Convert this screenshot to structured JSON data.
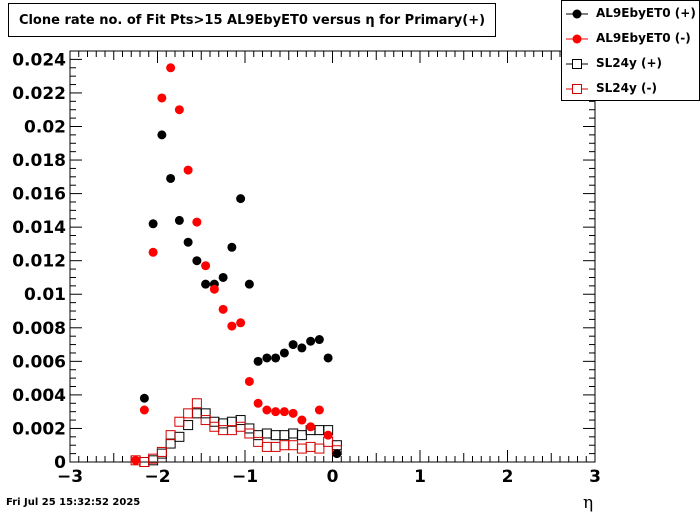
{
  "chart_data": {
    "type": "scatter",
    "title": "Clone rate no. of Fit Pts>15 AL9EbyET0 versus η for Primary(+)",
    "xlabel": "η",
    "ylabel": "",
    "xlim": [
      -3,
      3
    ],
    "ylim": [
      0,
      0.0245
    ],
    "x_ticks": [
      "−3",
      "−2",
      "−1",
      "0",
      "1",
      "2",
      "3"
    ],
    "y_ticks": [
      "0",
      "0.002",
      "0.004",
      "0.006",
      "0.008",
      "0.01",
      "0.012",
      "0.014",
      "0.016",
      "0.018",
      "0.02",
      "0.022",
      "0.024"
    ],
    "legend_position": "top-right",
    "grid": false,
    "series": [
      {
        "name": "AL9EbyET0 (+)",
        "color": "#000000",
        "marker": "filled-circle",
        "x": [
          -2.15,
          -2.05,
          -1.95,
          -1.85,
          -1.75,
          -1.65,
          -1.55,
          -1.45,
          -1.35,
          -1.25,
          -1.15,
          -1.05,
          -0.95,
          -0.85,
          -0.75,
          -0.65,
          -0.55,
          -0.45,
          -0.35,
          -0.25,
          -0.15,
          -0.05,
          0.05
        ],
        "y": [
          0.0038,
          0.0142,
          0.0195,
          0.0169,
          0.0144,
          0.0131,
          0.012,
          0.0106,
          0.0106,
          0.011,
          0.0128,
          0.0157,
          0.0106,
          0.006,
          0.0062,
          0.0062,
          0.0065,
          0.007,
          0.0068,
          0.0072,
          0.0073,
          0.0062,
          0.0005
        ]
      },
      {
        "name": "AL9EbyET0 (-)",
        "color": "#ff0000",
        "marker": "filled-circle",
        "x": [
          -2.25,
          -2.15,
          -2.05,
          -1.95,
          -1.85,
          -1.75,
          -1.65,
          -1.55,
          -1.45,
          -1.35,
          -1.25,
          -1.15,
          -1.05,
          -0.95,
          -0.85,
          -0.75,
          -0.65,
          -0.55,
          -0.45,
          -0.35,
          -0.25,
          -0.15,
          -0.05
        ],
        "y": [
          0.0001,
          0.0031,
          0.0125,
          0.0217,
          0.0235,
          0.021,
          0.0174,
          0.0143,
          0.0117,
          0.0103,
          0.0091,
          0.0081,
          0.0083,
          0.0048,
          0.0035,
          0.0031,
          0.003,
          0.003,
          0.0029,
          0.0025,
          0.0021,
          0.0031,
          0.0016
        ]
      },
      {
        "name": "SL24y (+)",
        "color": "#000000",
        "marker": "open-square",
        "x": [
          -2.15,
          -2.05,
          -1.95,
          -1.85,
          -1.75,
          -1.65,
          -1.55,
          -1.45,
          -1.35,
          -1.25,
          -1.15,
          -1.05,
          -0.95,
          -0.85,
          -0.75,
          -0.65,
          -0.55,
          -0.45,
          -0.35,
          -0.25,
          -0.15,
          -0.05,
          0.05
        ],
        "y": [
          0.0,
          0.0001,
          0.0005,
          0.0011,
          0.0015,
          0.0022,
          0.0029,
          0.0029,
          0.0024,
          0.0023,
          0.0024,
          0.0025,
          0.002,
          0.0016,
          0.0017,
          0.0016,
          0.0016,
          0.0017,
          0.0016,
          0.0019,
          0.0019,
          0.0019,
          0.001
        ]
      },
      {
        "name": "SL24y (-)",
        "color": "#d40000",
        "marker": "open-square",
        "x": [
          -2.25,
          -2.15,
          -2.05,
          -1.95,
          -1.85,
          -1.75,
          -1.65,
          -1.55,
          -1.45,
          -1.35,
          -1.25,
          -1.15,
          -1.05,
          -0.95,
          -0.85,
          -0.75,
          -0.65,
          -0.55,
          -0.45,
          -0.35,
          -0.25,
          -0.15,
          -0.05,
          0.05
        ],
        "y": [
          0.0001,
          0.0,
          0.0002,
          0.0006,
          0.0016,
          0.0024,
          0.0029,
          0.0035,
          0.0025,
          0.0021,
          0.0019,
          0.0019,
          0.0021,
          0.0017,
          0.0012,
          0.0009,
          0.0009,
          0.001,
          0.001,
          0.0008,
          0.0009,
          0.0008,
          0.0012,
          0.0007
        ]
      }
    ]
  },
  "footer": {
    "timestamp": "Fri Jul 25 15:32:52 2025"
  }
}
